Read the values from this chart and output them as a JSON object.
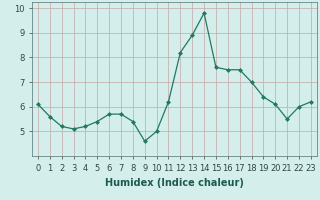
{
  "x": [
    0,
    1,
    2,
    3,
    4,
    5,
    6,
    7,
    8,
    9,
    10,
    11,
    12,
    13,
    14,
    15,
    16,
    17,
    18,
    19,
    20,
    21,
    22,
    23
  ],
  "y": [
    6.1,
    5.6,
    5.2,
    5.1,
    5.2,
    5.4,
    5.7,
    5.7,
    5.4,
    4.6,
    5.0,
    6.2,
    8.2,
    8.9,
    9.8,
    7.6,
    7.5,
    7.5,
    7.0,
    6.4,
    6.1,
    5.5,
    6.0,
    6.2
  ],
  "xlabel": "Humidex (Indice chaleur)",
  "ylabel": "",
  "xlim": [
    -0.5,
    23.5
  ],
  "ylim": [
    4.0,
    10.25
  ],
  "yticks": [
    5,
    6,
    7,
    8,
    9,
    10
  ],
  "xticks": [
    0,
    1,
    2,
    3,
    4,
    5,
    6,
    7,
    8,
    9,
    10,
    11,
    12,
    13,
    14,
    15,
    16,
    17,
    18,
    19,
    20,
    21,
    22,
    23
  ],
  "xtick_labels": [
    "0",
    "1",
    "2",
    "3",
    "4",
    "5",
    "6",
    "7",
    "8",
    "9",
    "10",
    "11",
    "12",
    "13",
    "14",
    "15",
    "16",
    "17",
    "18",
    "19",
    "20",
    "21",
    "22",
    "23"
  ],
  "line_color": "#1f7a60",
  "marker_color": "#1f7a60",
  "bg_color": "#d4eeec",
  "grid_color": "#c4a8a8",
  "label_fontsize": 7,
  "tick_fontsize": 6
}
